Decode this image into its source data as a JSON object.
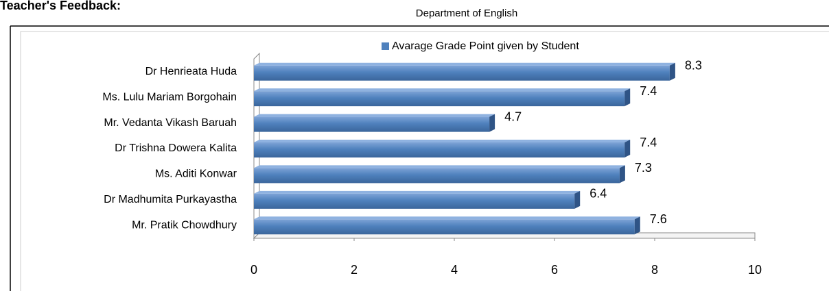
{
  "heading": "Teacher's Feedback:",
  "chart_data": {
    "type": "bar",
    "orientation": "horizontal",
    "title": "Department of English",
    "categories": [
      "Dr Henrieata Huda",
      "Ms. Lulu Mariam Borgohain",
      "Mr. Vedanta Vikash Baruah",
      "Dr Trishna Dowera Kalita",
      "Ms. Aditi Konwar",
      "Dr Madhumita Purkayastha",
      "Mr. Pratik Chowdhury"
    ],
    "series": [
      {
        "name": "Avarage Grade Point given by Student",
        "color": "#4f81bd",
        "values": [
          8.3,
          7.4,
          4.7,
          7.4,
          7.3,
          6.4,
          7.6
        ]
      }
    ],
    "xlim": [
      0,
      10
    ],
    "xticks": [
      0,
      2,
      4,
      6,
      8,
      10
    ],
    "legend": "top"
  }
}
